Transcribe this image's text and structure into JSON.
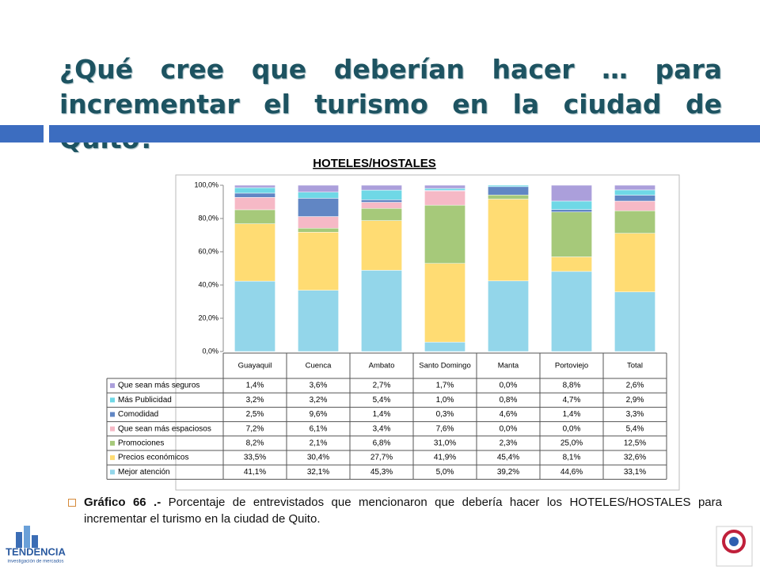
{
  "header": {
    "title": "¿Qué cree que deberían hacer … para\nincrementar el turismo en la ciudad de Quito?"
  },
  "chart_data": {
    "type": "bar",
    "stack": "percent",
    "title": "HOTELES/HOSTALES",
    "categories": [
      "Guayaquil",
      "Cuenca",
      "Ambato",
      "Santo Domingo",
      "Manta",
      "Portoviejo",
      "Total"
    ],
    "ylim": [
      0,
      100
    ],
    "yticks": [
      {
        "value": 0,
        "label": "0,0%"
      },
      {
        "value": 20,
        "label": "20,0%"
      },
      {
        "value": 40,
        "label": "40,0%"
      },
      {
        "value": 60,
        "label": "60,0%"
      },
      {
        "value": 80,
        "label": "80,0%"
      },
      {
        "value": 100,
        "label": "100,0%"
      }
    ],
    "grid": false,
    "series": [
      {
        "name": "Mejor atención",
        "color": "#93d6ea",
        "values": [
          41.1,
          32.1,
          45.3,
          5.0,
          39.2,
          44.6,
          33.1
        ],
        "value_labels": [
          "41,1%",
          "32,1%",
          "45,3%",
          "5,0%",
          "39,2%",
          "44,6%",
          "33,1%"
        ]
      },
      {
        "name": "Precios económicos",
        "color": "#ffdc73",
        "values": [
          33.5,
          30.4,
          27.7,
          41.9,
          45.4,
          8.1,
          32.6
        ],
        "value_labels": [
          "33,5%",
          "30,4%",
          "27,7%",
          "41,9%",
          "45,4%",
          "8,1%",
          "32,6%"
        ]
      },
      {
        "name": "Promociones",
        "color": "#a6c97a",
        "values": [
          8.2,
          2.1,
          6.8,
          31.0,
          2.3,
          25.0,
          12.5
        ],
        "value_labels": [
          "8,2%",
          "2,1%",
          "6,8%",
          "31,0%",
          "2,3%",
          "25,0%",
          "12,5%"
        ]
      },
      {
        "name": "Que sean más espaciosos",
        "color": "#f6b9c6",
        "values": [
          7.2,
          6.1,
          3.4,
          7.6,
          0.0,
          0.0,
          5.4
        ],
        "value_labels": [
          "7,2%",
          "6,1%",
          "3,4%",
          "7,6%",
          "0,0%",
          "0,0%",
          "5,4%"
        ]
      },
      {
        "name": "Comodidad",
        "color": "#6186c4",
        "values": [
          2.5,
          9.6,
          1.4,
          0.3,
          4.6,
          1.4,
          3.3
        ],
        "value_labels": [
          "2,5%",
          "9,6%",
          "1,4%",
          "0,3%",
          "4,6%",
          "1,4%",
          "3,3%"
        ]
      },
      {
        "name": "Más Publicidad",
        "color": "#6fd8e6",
        "values": [
          3.2,
          3.2,
          5.4,
          1.0,
          0.8,
          4.7,
          2.9
        ],
        "value_labels": [
          "3,2%",
          "3,2%",
          "5,4%",
          "1,0%",
          "0,8%",
          "4,7%",
          "2,9%"
        ]
      },
      {
        "name": "Que sean más seguros",
        "color": "#ab9fdb",
        "values": [
          1.4,
          3.6,
          2.7,
          1.7,
          0.0,
          8.8,
          2.6
        ],
        "value_labels": [
          "1,4%",
          "3,6%",
          "2,7%",
          "1,7%",
          "0,0%",
          "8,8%",
          "2,6%"
        ]
      }
    ]
  },
  "caption": {
    "label": "Gráfico 66 .-",
    "text": "Porcentaje de entrevistados que mencionaron que debería hacer los HOTELES/HOSTALES para incrementar el turismo en la ciudad de Quito."
  },
  "footer": {
    "brand": "TENDENCIA",
    "tagline": "investigación de mercados"
  }
}
